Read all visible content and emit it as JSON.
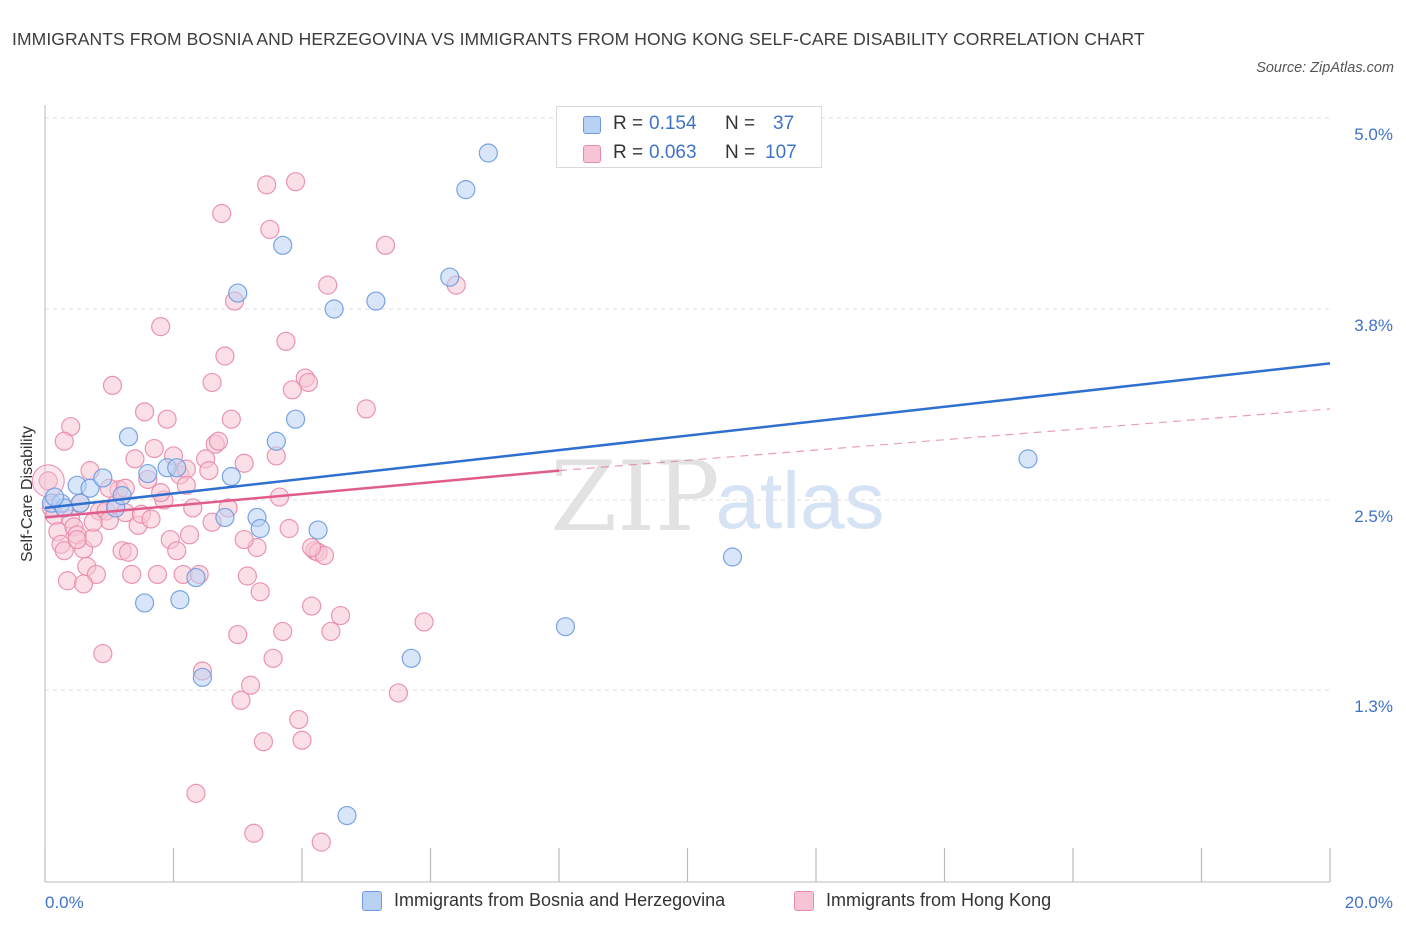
{
  "title": "IMMIGRANTS FROM BOSNIA AND HERZEGOVINA VS IMMIGRANTS FROM HONG KONG SELF-CARE DISABILITY CORRELATION CHART",
  "source": "Source: ZipAtlas.com",
  "legend": {
    "r_label": "R =",
    "n_label": "N =",
    "rows": [
      {
        "r": "0.154",
        "n": "37"
      },
      {
        "r": "0.063",
        "n": "107"
      }
    ]
  },
  "watermark": {
    "zip": "ZIP",
    "atlas": "atlas"
  },
  "colors": {
    "blue_fill": "#b9d2f4",
    "blue_stroke": "#6b9ae0",
    "blue_line": "#2f6fd0",
    "pink_fill": "#f6c4d4",
    "pink_stroke": "#e98aaa",
    "pink_line": "#e05c8c",
    "axis_text": "#3f73c8",
    "grid": "#dcdcdc"
  },
  "chart_data": {
    "type": "scatter",
    "title": "IMMIGRANTS FROM BOSNIA AND HERZEGOVINA VS IMMIGRANTS FROM HONG KONG SELF-CARE DISABILITY CORRELATION CHART",
    "xlabel": "",
    "ylabel": "Self-Care Disability",
    "xlim": [
      0,
      20
    ],
    "ylim": [
      0,
      5.25
    ],
    "x_ticks": [
      0,
      20
    ],
    "x_tick_labels": [
      "0.0%",
      "20.0%"
    ],
    "y_ticks": [
      1.3,
      2.5,
      3.8,
      5.0
    ],
    "y_tick_labels": [
      "1.3%",
      "2.5%",
      "3.8%",
      "5.0%"
    ],
    "grid": true,
    "legend_position": "top-center",
    "series": [
      {
        "name": "Immigrants from Bosnia and Herzegovina",
        "color": "blue",
        "R": 0.154,
        "N": 37,
        "trend": {
          "x": [
            0,
            20
          ],
          "y": [
            2.45,
            3.43
          ]
        },
        "points": [
          [
            0.1,
            2.48
          ],
          [
            0.25,
            2.48
          ],
          [
            0.3,
            2.45
          ],
          [
            0.5,
            2.6
          ],
          [
            0.7,
            2.58
          ],
          [
            0.9,
            2.65
          ],
          [
            1.1,
            2.45
          ],
          [
            1.3,
            2.93
          ],
          [
            1.55,
            1.85
          ],
          [
            1.6,
            2.68
          ],
          [
            1.9,
            2.72
          ],
          [
            2.1,
            1.87
          ],
          [
            2.35,
            2.01
          ],
          [
            2.45,
            1.38
          ],
          [
            2.8,
            2.39
          ],
          [
            2.9,
            2.66
          ],
          [
            3.0,
            3.9
          ],
          [
            3.3,
            2.39
          ],
          [
            3.35,
            2.32
          ],
          [
            3.6,
            2.9
          ],
          [
            3.7,
            4.2
          ],
          [
            3.9,
            3.05
          ],
          [
            4.25,
            2.31
          ],
          [
            4.5,
            3.8
          ],
          [
            4.7,
            0.45
          ],
          [
            5.15,
            3.85
          ],
          [
            5.7,
            1.5
          ],
          [
            6.3,
            4.0
          ],
          [
            6.55,
            4.55
          ],
          [
            6.9,
            4.78
          ],
          [
            8.1,
            1.7
          ],
          [
            10.7,
            2.14
          ],
          [
            15.3,
            2.78
          ],
          [
            0.55,
            2.48
          ],
          [
            1.2,
            2.53
          ],
          [
            2.05,
            2.72
          ],
          [
            0.15,
            2.52
          ]
        ]
      },
      {
        "name": "Immigrants from Hong Kong",
        "color": "pink",
        "R": 0.063,
        "N": 107,
        "trend": {
          "x": [
            0,
            8
          ],
          "y": [
            2.39,
            2.7
          ]
        },
        "trend_extension": {
          "x": [
            8,
            20
          ],
          "y": [
            2.7,
            3.12
          ]
        },
        "points": [
          [
            0.05,
            2.63
          ],
          [
            0.1,
            2.45
          ],
          [
            0.15,
            2.4
          ],
          [
            0.2,
            2.3
          ],
          [
            0.25,
            2.22
          ],
          [
            0.3,
            2.18
          ],
          [
            0.35,
            1.99
          ],
          [
            0.4,
            2.38
          ],
          [
            0.45,
            2.33
          ],
          [
            0.4,
            3.0
          ],
          [
            0.5,
            2.28
          ],
          [
            0.55,
            2.48
          ],
          [
            0.6,
            2.19
          ],
          [
            0.65,
            2.08
          ],
          [
            0.7,
            2.7
          ],
          [
            0.75,
            2.26
          ],
          [
            0.8,
            2.03
          ],
          [
            0.85,
            2.43
          ],
          [
            0.9,
            1.53
          ],
          [
            0.95,
            2.43
          ],
          [
            1.0,
            2.37
          ],
          [
            1.05,
            3.28
          ],
          [
            1.1,
            2.47
          ],
          [
            1.15,
            2.57
          ],
          [
            1.2,
            2.18
          ],
          [
            1.25,
            2.42
          ],
          [
            1.3,
            2.17
          ],
          [
            1.35,
            2.03
          ],
          [
            1.4,
            2.78
          ],
          [
            1.45,
            2.34
          ],
          [
            1.5,
            2.41
          ],
          [
            1.55,
            3.1
          ],
          [
            1.6,
            2.64
          ],
          [
            1.65,
            2.38
          ],
          [
            1.7,
            2.85
          ],
          [
            1.75,
            2.03
          ],
          [
            1.8,
            3.68
          ],
          [
            1.85,
            2.5
          ],
          [
            1.9,
            3.05
          ],
          [
            1.95,
            2.25
          ],
          [
            2.0,
            2.8
          ],
          [
            2.05,
            2.18
          ],
          [
            2.1,
            2.67
          ],
          [
            2.15,
            2.03
          ],
          [
            2.2,
            2.71
          ],
          [
            2.25,
            2.28
          ],
          [
            2.3,
            2.45
          ],
          [
            2.35,
            0.6
          ],
          [
            2.4,
            2.03
          ],
          [
            2.45,
            1.42
          ],
          [
            2.5,
            2.78
          ],
          [
            2.55,
            2.7
          ],
          [
            2.6,
            3.3
          ],
          [
            2.65,
            2.88
          ],
          [
            2.7,
            2.9
          ],
          [
            2.75,
            4.4
          ],
          [
            2.8,
            3.48
          ],
          [
            2.85,
            2.45
          ],
          [
            2.9,
            3.05
          ],
          [
            2.95,
            3.85
          ],
          [
            3.0,
            1.65
          ],
          [
            3.05,
            1.23
          ],
          [
            3.1,
            2.75
          ],
          [
            3.15,
            2.02
          ],
          [
            3.2,
            1.33
          ],
          [
            3.25,
            0.33
          ],
          [
            3.3,
            2.2
          ],
          [
            3.35,
            1.92
          ],
          [
            3.4,
            0.95
          ],
          [
            3.45,
            4.58
          ],
          [
            3.5,
            4.3
          ],
          [
            3.55,
            1.5
          ],
          [
            3.6,
            2.8
          ],
          [
            3.65,
            2.52
          ],
          [
            3.7,
            1.67
          ],
          [
            3.75,
            3.58
          ],
          [
            3.8,
            2.32
          ],
          [
            3.85,
            3.25
          ],
          [
            3.9,
            4.6
          ],
          [
            3.95,
            1.1
          ],
          [
            4.0,
            0.96
          ],
          [
            4.05,
            3.33
          ],
          [
            4.1,
            3.3
          ],
          [
            4.15,
            1.83
          ],
          [
            4.2,
            2.18
          ],
          [
            4.25,
            2.17
          ],
          [
            4.3,
            0.27
          ],
          [
            4.4,
            3.95
          ],
          [
            4.45,
            1.67
          ],
          [
            4.6,
            1.77
          ],
          [
            5.0,
            3.12
          ],
          [
            5.3,
            4.2
          ],
          [
            5.5,
            1.28
          ],
          [
            5.9,
            1.73
          ],
          [
            6.4,
            3.95
          ],
          [
            4.35,
            2.15
          ],
          [
            0.5,
            2.25
          ],
          [
            0.75,
            2.36
          ],
          [
            1.0,
            2.58
          ],
          [
            1.8,
            2.55
          ],
          [
            2.6,
            2.36
          ],
          [
            0.3,
            2.9
          ],
          [
            0.6,
            1.97
          ],
          [
            1.25,
            2.58
          ],
          [
            2.2,
            2.6
          ],
          [
            3.1,
            2.25
          ],
          [
            4.15,
            2.2
          ]
        ]
      }
    ]
  },
  "bottom_legend": [
    {
      "label": "Immigrants from Bosnia and Herzegovina"
    },
    {
      "label": "Immigrants from Hong Kong"
    }
  ]
}
